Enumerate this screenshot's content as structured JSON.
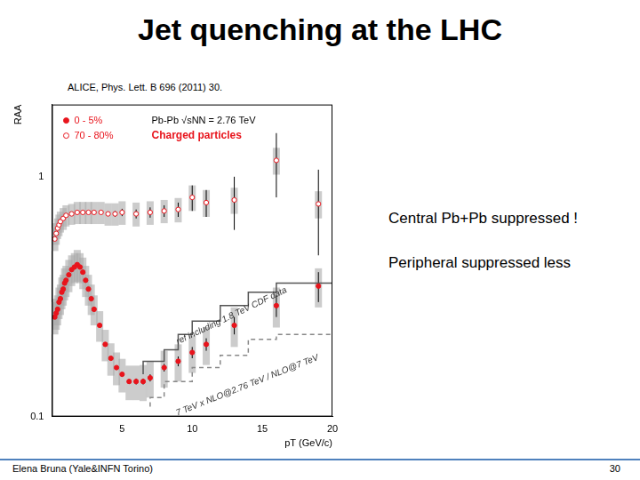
{
  "slide": {
    "title": "Jet quenching at the LHC",
    "citation": "ALICE, Phys. Lett. B 696 (2011) 30.",
    "notes": [
      "Central Pb+Pb suppressed !",
      "Peripheral suppressed less"
    ],
    "footer": "Elena Bruna (Yale&INFN Torino)",
    "page": 30
  },
  "chart_data": {
    "type": "scatter",
    "x_label": "pT (GeV/c)",
    "y_label": "RAA",
    "log": "y",
    "grid": false,
    "legend": "upper left",
    "xlim": [
      0,
      20
    ],
    "xticks": [
      5,
      10,
      15,
      20
    ],
    "ylim": [
      0.1,
      2
    ],
    "yticks": [
      0.1,
      1
    ],
    "annotations": [
      {
        "text": "Pb-Pb √sNN = 2.76 TeV",
        "color": "#000000"
      },
      {
        "text": "Charged particles",
        "color": "#e8141c"
      }
    ],
    "series": [
      {
        "name": "0 - 5%",
        "type": "scatter",
        "marker": "filled_circle",
        "color": "#e8141c",
        "x": [
          0.2,
          0.3,
          0.4,
          0.5,
          0.6,
          0.7,
          0.8,
          0.9,
          1.0,
          1.2,
          1.4,
          1.6,
          1.8,
          2.0,
          2.2,
          2.4,
          2.6,
          2.8,
          3.0,
          3.4,
          3.8,
          4.2,
          4.6,
          5.0,
          5.5,
          6.0,
          6.5,
          7.0,
          8.0,
          9.0,
          10.0,
          11.0,
          13.0,
          16.0,
          19.0
        ],
        "values": [
          0.26,
          0.27,
          0.28,
          0.3,
          0.31,
          0.33,
          0.34,
          0.36,
          0.37,
          0.39,
          0.41,
          0.42,
          0.43,
          0.42,
          0.4,
          0.37,
          0.34,
          0.31,
          0.28,
          0.24,
          0.2,
          0.175,
          0.16,
          0.15,
          0.14,
          0.14,
          0.14,
          0.145,
          0.16,
          0.17,
          0.185,
          0.2,
          0.24,
          0.29,
          0.35
        ],
        "errors": [
          0.002,
          0.002,
          0.002,
          0.002,
          0.002,
          0.002,
          0.002,
          0.002,
          0.002,
          0.002,
          0.002,
          0.002,
          0.002,
          0.002,
          0.002,
          0.002,
          0.002,
          0.002,
          0.002,
          0.002,
          0.002,
          0.002,
          0.002,
          0.003,
          0.003,
          0.004,
          0.004,
          0.005,
          0.006,
          0.008,
          0.01,
          0.012,
          0.02,
          0.03,
          0.05
        ],
        "syst_errors": [
          0.04,
          0.04,
          0.04,
          0.045,
          0.045,
          0.05,
          0.05,
          0.055,
          0.055,
          0.06,
          0.06,
          0.06,
          0.065,
          0.06,
          0.06,
          0.055,
          0.05,
          0.045,
          0.04,
          0.035,
          0.03,
          0.027,
          0.025,
          0.024,
          0.023,
          0.023,
          0.024,
          0.025,
          0.028,
          0.03,
          0.033,
          0.036,
          0.045,
          0.055,
          0.065
        ]
      },
      {
        "name": "70 - 80%",
        "type": "scatter",
        "marker": "open_circle",
        "color": "#e8141c",
        "x": [
          0.2,
          0.3,
          0.4,
          0.5,
          0.6,
          0.8,
          1.0,
          1.4,
          1.8,
          2.2,
          2.6,
          3.0,
          3.5,
          4.0,
          4.5,
          5.0,
          6.0,
          7.0,
          8.0,
          9.0,
          10.0,
          11.0,
          13.0,
          16.0,
          19.0
        ],
        "values": [
          0.55,
          0.58,
          0.61,
          0.63,
          0.65,
          0.67,
          0.69,
          0.7,
          0.71,
          0.71,
          0.71,
          0.71,
          0.71,
          0.7,
          0.7,
          0.71,
          0.7,
          0.71,
          0.72,
          0.73,
          0.82,
          0.78,
          0.8,
          1.17,
          0.77
        ],
        "errors": [
          0.003,
          0.003,
          0.003,
          0.003,
          0.003,
          0.003,
          0.004,
          0.004,
          0.005,
          0.006,
          0.008,
          0.01,
          0.012,
          0.015,
          0.02,
          0.025,
          0.03,
          0.035,
          0.04,
          0.05,
          0.1,
          0.1,
          0.2,
          0.35,
          0.3
        ],
        "syst_errors": [
          0.06,
          0.06,
          0.06,
          0.065,
          0.065,
          0.07,
          0.07,
          0.07,
          0.075,
          0.075,
          0.075,
          0.075,
          0.075,
          0.075,
          0.075,
          0.08,
          0.08,
          0.08,
          0.08,
          0.085,
          0.1,
          0.1,
          0.1,
          0.15,
          0.1
        ]
      },
      {
        "name": "ref including 1.8 TeV CDF data",
        "type": "line",
        "line_style": "solid",
        "color": "#555555",
        "x": [
          6.5,
          8.0,
          9.0,
          10.0,
          12.0,
          14.0,
          16.0,
          18.0,
          20.0
        ],
        "values": [
          0.15,
          0.17,
          0.19,
          0.22,
          0.25,
          0.29,
          0.33,
          0.36,
          0.36
        ]
      },
      {
        "name": "7 TeV x NLO@2.76 TeV / NLO@7 TeV",
        "type": "line",
        "line_style": "dashed",
        "color": "#888888",
        "x": [
          7.0,
          8.0,
          10.0,
          12.0,
          14.0,
          16.0,
          18.0,
          20.0
        ],
        "values": [
          0.11,
          0.12,
          0.14,
          0.16,
          0.18,
          0.21,
          0.22,
          0.22
        ]
      }
    ]
  }
}
